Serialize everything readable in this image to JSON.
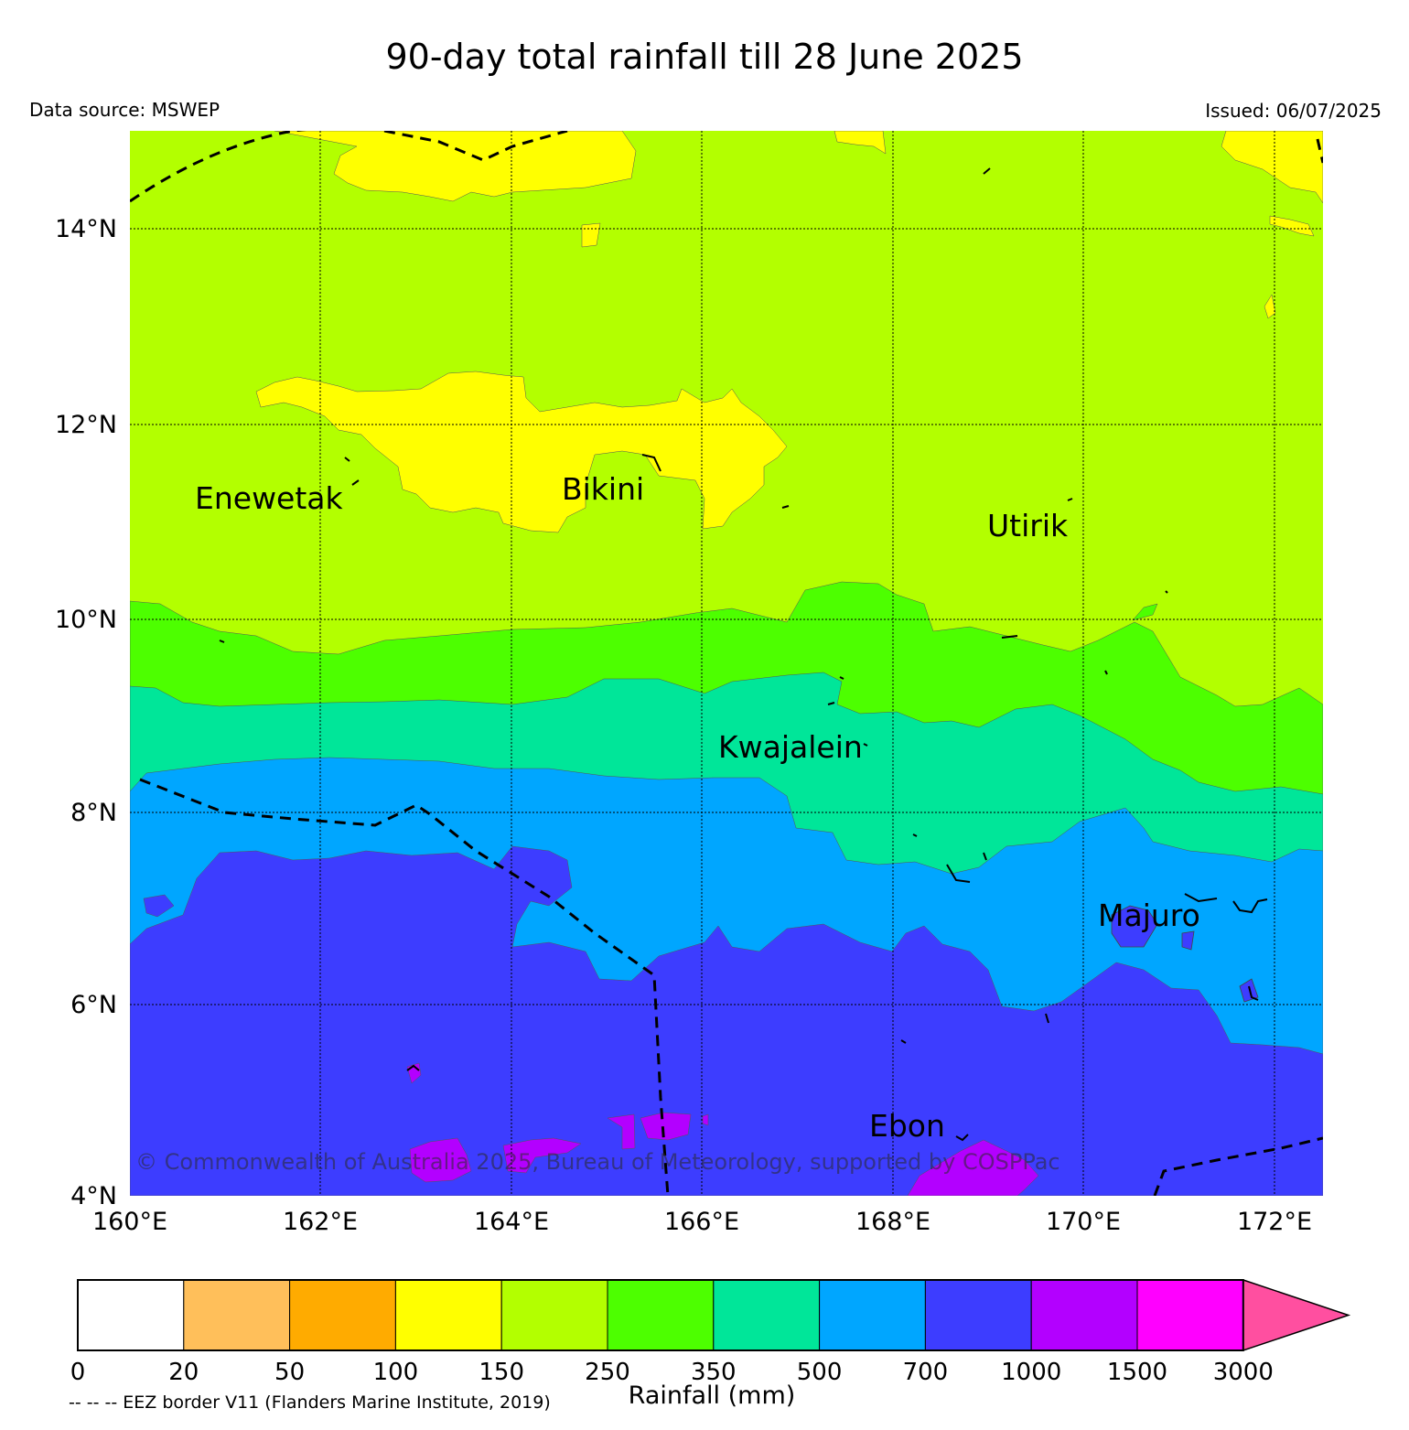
{
  "header": {
    "title": "90-day total rainfall till 28 June 2025",
    "data_source": "Data source: MSWEP",
    "issued": "Issued: 06/07/2025"
  },
  "map": {
    "lat_labels": [
      "14°N",
      "12°N",
      "10°N",
      "8°N",
      "6°N",
      "4°N"
    ],
    "lon_labels": [
      "160°E",
      "162°E",
      "164°E",
      "166°E",
      "168°E",
      "170°E",
      "172°E"
    ],
    "places": [
      "Enewetak",
      "Bikini",
      "Utirik",
      "Kwajalein",
      "Majuro",
      "Ebon"
    ],
    "copyright": "© Commonwealth of Australia 2025, Bureau of Meteorology, supported by COSPPac"
  },
  "colorbar": {
    "title": "Rainfall (mm)",
    "tick_labels": [
      "0",
      "20",
      "50",
      "100",
      "150",
      "250",
      "350",
      "500",
      "700",
      "1000",
      "1500",
      "3000"
    ],
    "colors": [
      "#ffffff",
      "#ffbf5a",
      "#ffab00",
      "#ffff00",
      "#b3ff00",
      "#4dff00",
      "#00e699",
      "#00a6ff",
      "#3d3dff",
      "#b300ff",
      "#ff00ff"
    ],
    "extend_color": "#ff4fa0"
  },
  "legend_note": "-- -- -- EEZ border V11 (Flanders Marine Institute, 2019)"
}
